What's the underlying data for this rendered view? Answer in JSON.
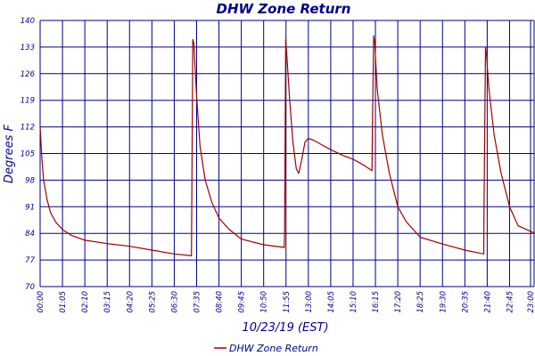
{
  "chart_data": {
    "type": "line",
    "title": "DHW Zone Return",
    "xlabel": "10/23/19 (EST)",
    "ylabel": "Degrees F",
    "ylim": [
      70,
      140
    ],
    "yticks": [
      70,
      77,
      84,
      91,
      98,
      105,
      112,
      119,
      126,
      133,
      140
    ],
    "xlim": [
      "00:00",
      "23:59"
    ],
    "xtick_labels": [
      "00:00",
      "01:05",
      "02:10",
      "03:15",
      "04:20",
      "05:25",
      "06:30",
      "07:35",
      "08:40",
      "09:45",
      "10:50",
      "11:55",
      "13:00",
      "14:05",
      "15:10",
      "16:15",
      "17:20",
      "18:25",
      "19:30",
      "20:35",
      "21:40",
      "22:45",
      "23:00"
    ],
    "grid": true,
    "legend_position": "bottom-center",
    "colors": {
      "series": "#a00000",
      "grid": "#00008b",
      "text": "#00008b"
    },
    "series": [
      {
        "name": "DHW Zone Return",
        "points": [
          [
            "00:00",
            112
          ],
          [
            "00:05",
            104
          ],
          [
            "00:10",
            98
          ],
          [
            "00:20",
            93
          ],
          [
            "00:30",
            89.5
          ],
          [
            "00:45",
            87
          ],
          [
            "01:05",
            85
          ],
          [
            "01:30",
            83.5
          ],
          [
            "02:10",
            82.2
          ],
          [
            "03:15",
            81.3
          ],
          [
            "04:20",
            80.6
          ],
          [
            "05:25",
            79.6
          ],
          [
            "06:30",
            78.6
          ],
          [
            "07:20",
            78.1
          ],
          [
            "07:21",
            92
          ],
          [
            "07:24",
            135
          ],
          [
            "07:27",
            134
          ],
          [
            "07:35",
            120
          ],
          [
            "07:45",
            107
          ],
          [
            "08:00",
            98
          ],
          [
            "08:20",
            92
          ],
          [
            "08:40",
            88
          ],
          [
            "09:10",
            85
          ],
          [
            "09:45",
            82.5
          ],
          [
            "10:50",
            81
          ],
          [
            "11:50",
            80.3
          ],
          [
            "11:51",
            85
          ],
          [
            "11:54",
            135
          ],
          [
            "11:58",
            130
          ],
          [
            "12:05",
            120
          ],
          [
            "12:15",
            108
          ],
          [
            "12:25",
            101
          ],
          [
            "12:32",
            99.8
          ],
          [
            "12:40",
            103
          ],
          [
            "12:50",
            108
          ],
          [
            "13:00",
            109
          ],
          [
            "13:15",
            108.5
          ],
          [
            "13:45",
            107
          ],
          [
            "14:05",
            106
          ],
          [
            "14:40",
            104.5
          ],
          [
            "15:10",
            103.5
          ],
          [
            "15:40",
            102
          ],
          [
            "16:05",
            100.5
          ],
          [
            "16:06",
            111
          ],
          [
            "16:10",
            136
          ],
          [
            "16:13",
            134
          ],
          [
            "16:20",
            122
          ],
          [
            "16:35",
            110
          ],
          [
            "16:55",
            100
          ],
          [
            "17:20",
            91
          ],
          [
            "17:45",
            87
          ],
          [
            "18:25",
            83
          ],
          [
            "19:30",
            81.2
          ],
          [
            "20:35",
            79.6
          ],
          [
            "21:30",
            78.6
          ],
          [
            "21:31",
            93
          ],
          [
            "21:35",
            133
          ],
          [
            "21:38",
            131
          ],
          [
            "21:45",
            122
          ],
          [
            "22:00",
            110
          ],
          [
            "22:20",
            100
          ],
          [
            "22:45",
            91
          ],
          [
            "23:10",
            86
          ],
          [
            "23:59",
            84
          ]
        ]
      }
    ]
  }
}
